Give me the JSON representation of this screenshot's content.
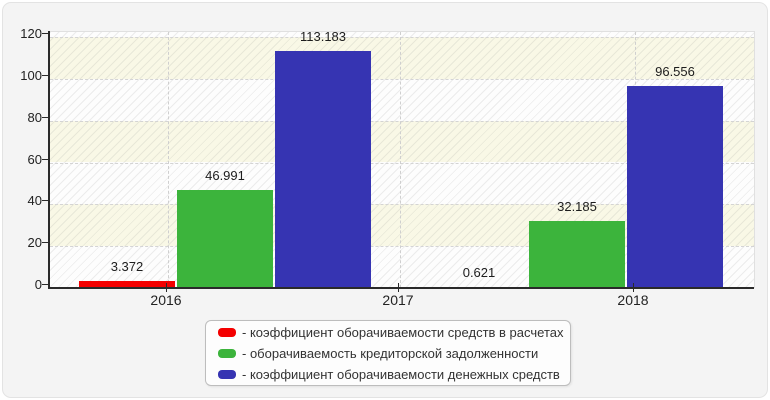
{
  "chart_data": {
    "type": "bar",
    "title": "",
    "x_tick_labels": [
      "2016",
      "2017",
      "2018"
    ],
    "y_tick_labels": [
      "0",
      "20",
      "40",
      "60",
      "80",
      "100",
      "120"
    ],
    "y_ticks": [
      0,
      20,
      40,
      60,
      80,
      100,
      120
    ],
    "ylim": [
      0,
      120
    ],
    "grid": "dashed horizontal and vertical gridlines, hatched plot background with alternating cream bands",
    "legend_position": "bottom-center",
    "series": [
      {
        "name": "коэффициент оборачиваемости средств в расчетах",
        "color": "#f40000",
        "values": [
          3.372,
          0.621
        ],
        "labels": [
          "3.372",
          "0.621"
        ]
      },
      {
        "name": "оборачиваемость кредиторской задолженности",
        "color": "#3cb43c",
        "values": [
          46.991,
          32.185
        ],
        "labels": [
          "46.991",
          "32.185"
        ]
      },
      {
        "name": "коэффициент оборачиваемости денежных средств",
        "color": "#3634b2",
        "values": [
          113.183,
          96.556
        ],
        "labels": [
          "113.183",
          "96.556"
        ]
      }
    ]
  },
  "legend": {
    "items": [
      {
        "label": "- коэффициент оборачиваемости средств в расчетах",
        "color": "#f40000"
      },
      {
        "label": "- оборачиваемость кредиторской задолженности",
        "color": "#3cb43c"
      },
      {
        "label": "- коэффициент оборачиваемости денежных средств",
        "color": "#3634b2"
      }
    ]
  },
  "colors": {
    "panel_bg": "#f4f4f4",
    "plot_bg": "#fdfdfd",
    "band_cream": "#f9f8e6",
    "axis": "#2a2a2a",
    "grid": "#d4d4d4",
    "text": "#222222"
  }
}
